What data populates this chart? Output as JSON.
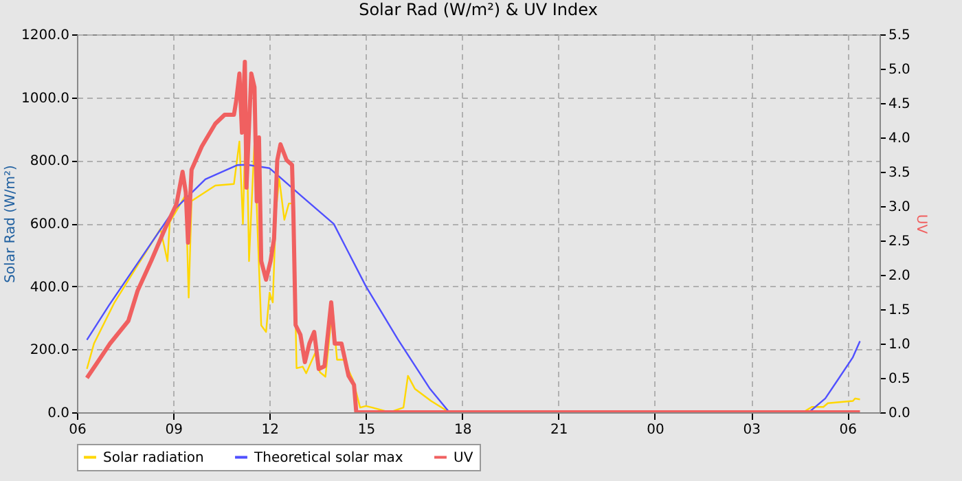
{
  "chart_data": {
    "type": "line",
    "title": "Solar Rad (W/m²) &  UV Index",
    "ylabel": "Solar Rad (W/m²)",
    "y2label": "UV",
    "xlim": [
      6,
      31
    ],
    "xticks": [
      {
        "value": 6,
        "label": "06"
      },
      {
        "value": 9,
        "label": "09"
      },
      {
        "value": 12,
        "label": "12"
      },
      {
        "value": 15,
        "label": "15"
      },
      {
        "value": 18,
        "label": "18"
      },
      {
        "value": 21,
        "label": "21"
      },
      {
        "value": 24,
        "label": "00"
      },
      {
        "value": 27,
        "label": "03"
      },
      {
        "value": 30,
        "label": "06"
      }
    ],
    "ylim": [
      0,
      1200
    ],
    "yticks": [
      {
        "value": 0,
        "label": "0.0"
      },
      {
        "value": 200,
        "label": "200.0"
      },
      {
        "value": 400,
        "label": "400.0"
      },
      {
        "value": 600,
        "label": "600.0"
      },
      {
        "value": 800,
        "label": "800.0"
      },
      {
        "value": 1000,
        "label": "1000.0"
      },
      {
        "value": 1200,
        "label": "1200.0"
      }
    ],
    "y2lim": [
      0,
      5.5
    ],
    "y2ticks": [
      {
        "value": 0,
        "label": "0.0"
      },
      {
        "value": 0.5,
        "label": "0.5"
      },
      {
        "value": 1,
        "label": "1.0"
      },
      {
        "value": 1.5,
        "label": "1.5"
      },
      {
        "value": 2,
        "label": "2.0"
      },
      {
        "value": 2.5,
        "label": "2.5"
      },
      {
        "value": 3,
        "label": "3.0"
      },
      {
        "value": 3.5,
        "label": "3.5"
      },
      {
        "value": 4,
        "label": "4.0"
      },
      {
        "value": 4.5,
        "label": "4.5"
      },
      {
        "value": 5,
        "label": "5.0"
      },
      {
        "value": 5.5,
        "label": "5.5"
      }
    ],
    "grid": true,
    "legend": "bottom",
    "series": [
      {
        "name": "Solar radiation",
        "color": "#ffd700",
        "x": [
          6.31,
          6.53,
          7.17,
          7.89,
          8.6,
          8.82,
          8.89,
          9.39,
          9.48,
          9.57,
          10.31,
          10.89,
          11.06,
          11.17,
          11.27,
          11.36,
          11.53,
          11.63,
          11.74,
          11.89,
          12.0,
          12.1,
          12.2,
          12.3,
          12.46,
          12.6,
          12.74,
          12.84,
          13.03,
          13.14,
          13.42,
          13.57,
          13.74,
          13.96,
          14.1,
          14.31,
          14.6,
          14.82,
          15.0,
          15.2,
          15.74,
          16.17,
          16.31,
          16.53,
          17.03,
          17.6,
          28.67,
          28.89,
          29.25,
          29.39,
          30.17,
          30.24,
          30.39
        ],
        "values": [
          138,
          218,
          349,
          467,
          582,
          480,
          604,
          691,
          364,
          671,
          720,
          725,
          860,
          598,
          997,
          480,
          860,
          568,
          276,
          255,
          380,
          349,
          640,
          742,
          611,
          663,
          663,
          140,
          145,
          124,
          188,
          127,
          113,
          335,
          167,
          167,
          102,
          15,
          20,
          15,
          0,
          15,
          116,
          74,
          36,
          0,
          3,
          17,
          17,
          29,
          36,
          44,
          41
        ]
      },
      {
        "name": "Theoretical solar max",
        "color": "#5050ff",
        "x": [
          6.31,
          7,
          8,
          9,
          10,
          11,
          11.3,
          12,
          13,
          14,
          15,
          16,
          17,
          17.6,
          28.8,
          29.31,
          29.74,
          30.17,
          30.39
        ],
        "values": [
          230,
          340,
          490,
          640,
          740,
          785,
          786,
          775,
          686,
          598,
          400,
          231,
          74,
          0,
          0,
          44,
          109,
          175,
          226
        ]
      },
      {
        "name": "UV",
        "color": "#f06060",
        "axis": "y2",
        "x": [
          6.31,
          6.6,
          7.03,
          7.6,
          7.89,
          8.31,
          8.74,
          9.1,
          9.29,
          9.39,
          9.46,
          9.57,
          9.89,
          10.31,
          10.6,
          10.89,
          10.96,
          11.06,
          11.14,
          11.23,
          11.28,
          11.43,
          11.53,
          11.6,
          11.67,
          11.74,
          11.89,
          12.03,
          12.14,
          12.24,
          12.34,
          12.53,
          12.7,
          12.74,
          12.81,
          12.96,
          13.1,
          13.24,
          13.39,
          13.53,
          13.71,
          13.92,
          14.03,
          14.24,
          14.46,
          14.63,
          14.7,
          30.39
        ],
        "values": [
          0.5,
          0.7,
          1.0,
          1.33,
          1.77,
          2.2,
          2.67,
          3.03,
          3.5,
          3.2,
          2.47,
          3.53,
          3.87,
          4.2,
          4.33,
          4.33,
          4.53,
          4.93,
          4.07,
          5.1,
          3.27,
          4.93,
          4.73,
          3.07,
          4.0,
          2.2,
          1.93,
          2.2,
          2.53,
          3.67,
          3.9,
          3.67,
          3.6,
          2.93,
          1.27,
          1.13,
          0.73,
          1.0,
          1.17,
          0.63,
          0.67,
          1.6,
          1.0,
          1.0,
          0.53,
          0.4,
          0,
          0
        ]
      }
    ]
  }
}
